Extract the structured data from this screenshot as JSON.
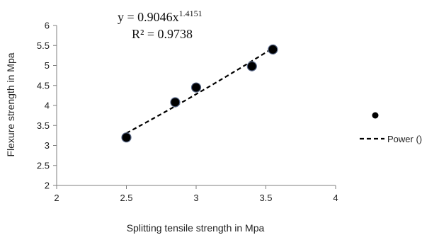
{
  "chart_data": {
    "type": "scatter",
    "xlabel": "Splitting tensile strength in Mpa",
    "ylabel": "Flexure strength in Mpa",
    "xlim": [
      2,
      4
    ],
    "ylim": [
      2,
      6
    ],
    "x_ticks": [
      "2",
      "2.5",
      "3",
      "3.5",
      "4"
    ],
    "y_ticks": [
      "2",
      "2.5",
      "3",
      "3.5",
      "4",
      "4.5",
      "5",
      "5.5",
      "6"
    ],
    "grid": false,
    "series": [
      {
        "x": [
          2.5,
          2.85,
          3.0,
          3.4,
          3.55
        ],
        "y": [
          3.2,
          4.08,
          4.45,
          4.98,
          5.4
        ],
        "marker_color": "#000000"
      }
    ],
    "trendline": {
      "name": "Power ()",
      "a": 0.9046,
      "b": 1.4151,
      "x_range": [
        2.5,
        3.55
      ],
      "equation_prefix": "y = 0.9046x",
      "equation_exponent": "1.4151",
      "r2_text": "R² = 0.9738",
      "style": "dashed",
      "color": "#000000"
    },
    "legend": {
      "position": "right"
    }
  }
}
